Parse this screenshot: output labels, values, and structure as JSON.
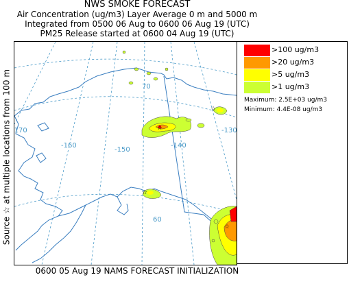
{
  "title": {
    "line1": "NWS SMOKE FORECAST",
    "line2": "Air Concentration (ug/m3) Layer Average    0 m  and  5000 m",
    "line3": "Integrated from 0500 06 Aug to 0600 06 Aug 19 (UTC)",
    "line4": "PM25 Release started at 0600 04 Aug 19 (UTC)"
  },
  "side_label": "Source ☆  at multiple locations   from   100 m",
  "footer": "0600 05 Aug 19 NAMS FORECAST INITIALIZATION",
  "legend": {
    "items": [
      {
        "label": ">100 ug/m3",
        "color": "#ff0000"
      },
      {
        "label": ">20 ug/m3",
        "color": "#ff9900"
      },
      {
        "label": ">5 ug/m3",
        "color": "#ffff00"
      },
      {
        "label": ">1 ug/m3",
        "color": "#ccff33"
      }
    ],
    "maximum": "Maximum: 2.5E+03 ug/m3",
    "minimum": "Minimum: 4.4E-08 ug/m3"
  },
  "map_labels": {
    "lat70": "70",
    "lat60": "60",
    "lon170": "-170",
    "lon160": "-160",
    "lon150": "-150",
    "lon140": "-140",
    "lon130": "-130"
  },
  "colors": {
    "grid": "#4a9ac8",
    "coast": "#3a7ec0",
    "border": "#3a7ec0"
  }
}
